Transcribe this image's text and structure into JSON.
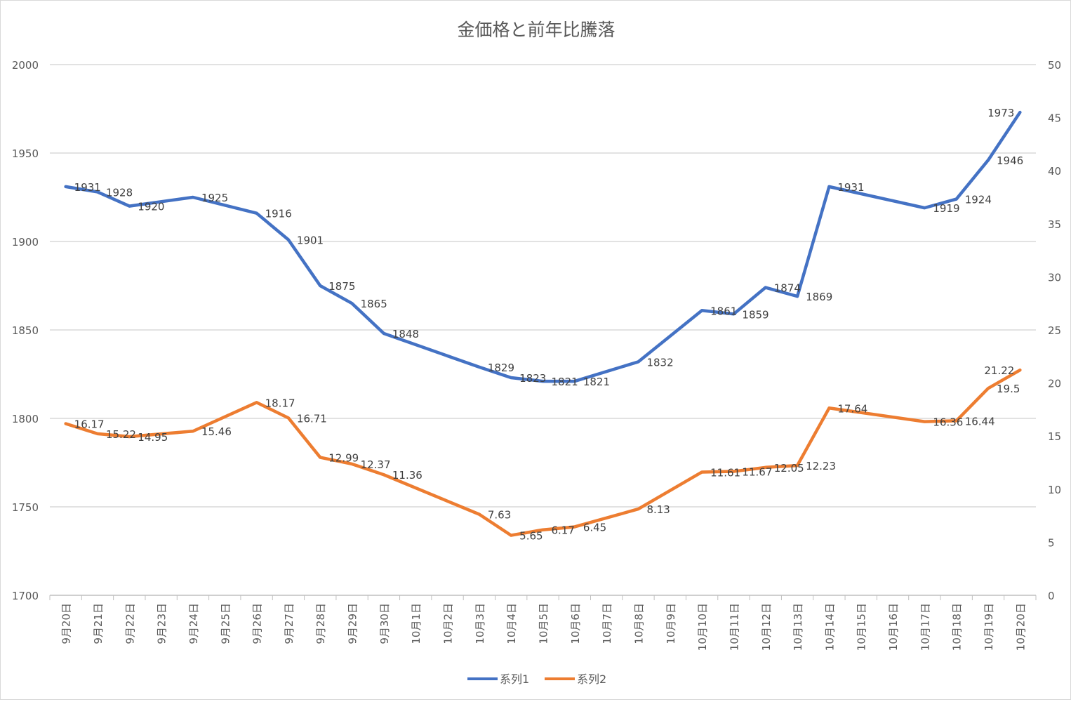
{
  "chart_data": {
    "type": "line",
    "title": "金価格と前年比騰落",
    "categories": [
      "9月20日",
      "9月21日",
      "9月22日",
      "9月23日",
      "9月24日",
      "9月25日",
      "9月26日",
      "9月27日",
      "9月28日",
      "9月29日",
      "9月30日",
      "10月1日",
      "10月2日",
      "10月3日",
      "10月4日",
      "10月5日",
      "10月6日",
      "10月7日",
      "10月8日",
      "10月9日",
      "10月10日",
      "10月11日",
      "10月12日",
      "10月13日",
      "10月14日",
      "10月15日",
      "10月16日",
      "10月17日",
      "10月18日",
      "10月19日",
      "10月20日"
    ],
    "series": [
      {
        "name": "系列1",
        "axis": "left",
        "color": "#4472C4",
        "values": [
          1931,
          1928,
          1920,
          null,
          1925,
          null,
          1916,
          1901,
          1875,
          1865,
          1848,
          null,
          null,
          1829,
          1823,
          1821,
          1821,
          null,
          1832,
          null,
          1861,
          1859,
          1874,
          1869,
          1931,
          null,
          null,
          1919,
          1924,
          1946,
          1973
        ]
      },
      {
        "name": "系列2",
        "axis": "right",
        "color": "#ED7D31",
        "values": [
          16.17,
          15.22,
          14.95,
          null,
          15.46,
          null,
          18.17,
          16.71,
          12.99,
          12.37,
          11.36,
          null,
          null,
          7.63,
          5.65,
          6.17,
          6.45,
          null,
          8.13,
          null,
          11.61,
          11.67,
          12.05,
          12.23,
          17.64,
          null,
          null,
          16.36,
          16.44,
          19.5,
          21.22
        ]
      }
    ],
    "y_left": {
      "min": 1700,
      "max": 2000,
      "ticks": [
        "1700",
        "1750",
        "1800",
        "1850",
        "1900",
        "1950",
        "2000"
      ]
    },
    "y_right": {
      "min": 0,
      "max": 50,
      "ticks": [
        "0",
        "5",
        "10",
        "15",
        "20",
        "25",
        "30",
        "35",
        "40",
        "45",
        "50"
      ]
    },
    "grid": true,
    "data_labels": true,
    "legend": "bottom"
  }
}
